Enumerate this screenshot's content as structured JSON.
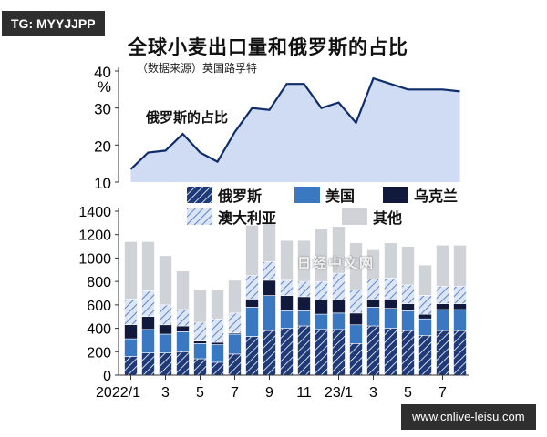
{
  "tag": "TG: MYYJJPP",
  "footer": "www.cnlive-leisu.com",
  "watermark": "日经中文网",
  "colors": {
    "russia": "#1e3a78",
    "usa": "#3a78c2",
    "ukraine": "#111a3d",
    "australia": "#7aa0da",
    "other": "#cfd2d6",
    "line": "#0f2d6b",
    "area": "#cfdcf3"
  },
  "chart_data": [
    {
      "type": "area",
      "title": "全球小麦出口量和俄罗斯的占比",
      "subtitle": "（数据来源）英国路孚特",
      "ylabel": "%",
      "inline_label": "俄罗斯的占比",
      "ylim": [
        10,
        40
      ],
      "yticks": [
        "40",
        "30",
        "20",
        "10"
      ],
      "ytick_values": [
        40,
        30,
        20,
        10
      ],
      "values": [
        13.5,
        18,
        18.5,
        23,
        18,
        15.5,
        23.5,
        30,
        29.5,
        36.5,
        36.5,
        30,
        31.5,
        26,
        38,
        36.5,
        35,
        35,
        35,
        34.5
      ]
    },
    {
      "type": "bar",
      "stacked": true,
      "ylim": [
        0,
        1400
      ],
      "yticks": [
        "1400",
        "1200",
        "1000",
        "800",
        "600",
        "400",
        "200",
        "0"
      ],
      "ytick_values": [
        1400,
        1200,
        1000,
        800,
        600,
        400,
        200,
        0
      ],
      "categories": [
        "2022/1",
        "",
        "3",
        "",
        "5",
        "",
        "7",
        "",
        "9",
        "",
        "11",
        "",
        "23/1",
        "",
        "3",
        "",
        "5",
        "",
        "7",
        ""
      ],
      "xtick_labels": [
        "2022/1",
        "3",
        "5",
        "7",
        "9",
        "11",
        "23/1",
        "3",
        "5",
        "7"
      ],
      "xtick_indices": [
        0,
        2,
        4,
        6,
        8,
        10,
        12,
        14,
        16,
        18
      ],
      "series": [
        {
          "name": "俄罗斯",
          "key": "russia",
          "pattern": "hatch-dark",
          "values": [
            160,
            190,
            190,
            200,
            140,
            110,
            180,
            330,
            380,
            400,
            420,
            390,
            390,
            270,
            420,
            400,
            380,
            340,
            380,
            380
          ]
        },
        {
          "name": "美国",
          "key": "usa",
          "values": [
            150,
            200,
            160,
            170,
            130,
            150,
            170,
            250,
            300,
            150,
            130,
            130,
            140,
            160,
            160,
            170,
            170,
            140,
            180,
            180
          ]
        },
        {
          "name": "乌克兰",
          "key": "ukraine",
          "values": [
            120,
            110,
            80,
            50,
            20,
            20,
            10,
            70,
            130,
            130,
            120,
            120,
            110,
            100,
            70,
            80,
            60,
            40,
            50,
            50
          ]
        },
        {
          "name": "澳大利亚",
          "key": "australia",
          "pattern": "hatch-light",
          "values": [
            220,
            220,
            170,
            140,
            160,
            200,
            170,
            200,
            160,
            130,
            130,
            160,
            230,
            200,
            170,
            180,
            160,
            160,
            150,
            150
          ]
        },
        {
          "name": "其他",
          "key": "other",
          "values": [
            490,
            420,
            420,
            330,
            280,
            250,
            280,
            430,
            330,
            340,
            350,
            450,
            400,
            400,
            250,
            300,
            330,
            260,
            350,
            350
          ]
        }
      ]
    }
  ]
}
